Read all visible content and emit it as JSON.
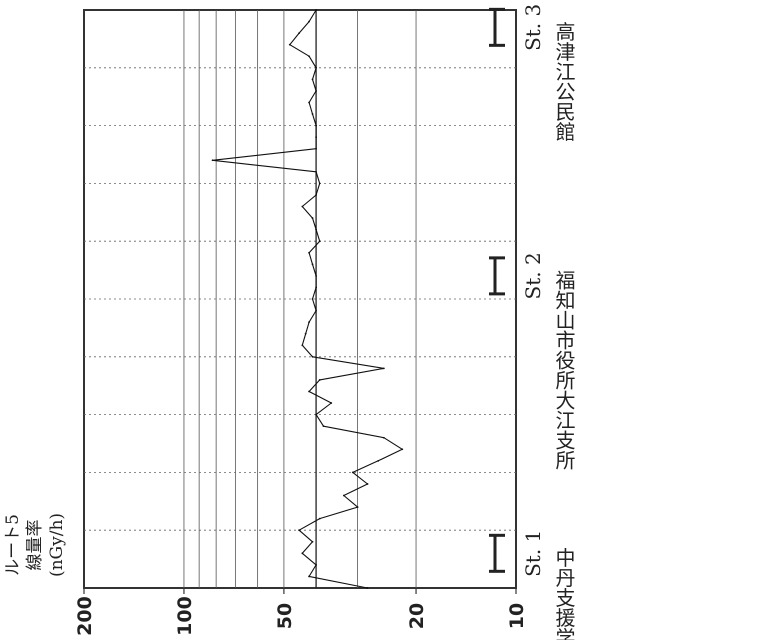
{
  "chart_data": {
    "type": "line",
    "ylabel_lines": [
      "ルート5",
      "線量率",
      "(nGy/h)"
    ],
    "y_scale": "log",
    "ylim": [
      10,
      200
    ],
    "y_ticks": [
      {
        "value": 200,
        "label": "200"
      },
      {
        "value": 100,
        "label": "100"
      },
      {
        "value": 50,
        "label": "50"
      },
      {
        "value": 20,
        "label": "20"
      },
      {
        "value": 10,
        "label": "10"
      }
    ],
    "xlim": [
      0,
      100
    ],
    "grid": true,
    "reference_line": 40,
    "stations": [
      {
        "x": 6,
        "st": "St. 1",
        "name": "中丹支援学校"
      },
      {
        "x": 54,
        "st": "St. 2",
        "name": "福知山市役所大江支所"
      },
      {
        "x": 97,
        "st": "St. 3",
        "name": "高津江公民館"
      }
    ],
    "series": [
      {
        "x": [
          0,
          2,
          4,
          6,
          8,
          10,
          12,
          14,
          16,
          18,
          20,
          22,
          24,
          26,
          28,
          30,
          32,
          34,
          36,
          38,
          40,
          42,
          44,
          46,
          48,
          50,
          52,
          54,
          56,
          58,
          60,
          62,
          64,
          66,
          68,
          70,
          72,
          74,
          76,
          78,
          80,
          82,
          84,
          86,
          88,
          90,
          92,
          94,
          96,
          98,
          100
        ],
        "y": [
          28,
          42,
          40,
          44,
          41,
          45,
          39,
          30,
          33,
          28,
          31,
          26,
          22,
          25,
          38,
          40,
          36,
          42,
          39,
          25,
          41,
          44,
          43,
          42,
          40,
          41,
          40,
          40,
          41,
          42,
          39,
          40,
          41,
          44,
          40,
          39,
          40,
          82,
          40,
          40,
          40,
          41,
          42,
          40,
          41,
          40,
          42,
          48,
          45,
          42,
          40
        ]
      }
    ]
  }
}
